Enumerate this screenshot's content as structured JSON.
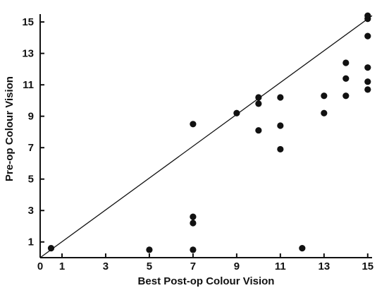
{
  "chart_data": {
    "type": "scatter",
    "xlabel": "Best Post-op Colour Vision",
    "ylabel": "Pre-op Colour Vision",
    "xlim": [
      0,
      15
    ],
    "ylim": [
      0,
      15
    ],
    "xticks": [
      0,
      1,
      3,
      5,
      7,
      9,
      11,
      13,
      15
    ],
    "yticks": [
      1,
      3,
      5,
      7,
      9,
      11,
      13,
      15
    ],
    "grid": false,
    "legend": "none",
    "reference_line": {
      "from": [
        0,
        0
      ],
      "to": [
        15.2,
        15.4
      ],
      "label": ""
    },
    "points": [
      {
        "x": 0.5,
        "y": 0.6
      },
      {
        "x": 5,
        "y": 0.5
      },
      {
        "x": 7,
        "y": 0.5
      },
      {
        "x": 7,
        "y": 2.2
      },
      {
        "x": 7,
        "y": 2.6
      },
      {
        "x": 7,
        "y": 8.5
      },
      {
        "x": 9,
        "y": 9.2
      },
      {
        "x": 10,
        "y": 8.1
      },
      {
        "x": 10,
        "y": 9.8
      },
      {
        "x": 10,
        "y": 10.2
      },
      {
        "x": 11,
        "y": 6.9
      },
      {
        "x": 11,
        "y": 8.4
      },
      {
        "x": 11,
        "y": 10.2
      },
      {
        "x": 12,
        "y": 0.6
      },
      {
        "x": 13,
        "y": 9.2
      },
      {
        "x": 13,
        "y": 10.3
      },
      {
        "x": 14,
        "y": 10.3
      },
      {
        "x": 14,
        "y": 11.4
      },
      {
        "x": 14,
        "y": 12.4
      },
      {
        "x": 15,
        "y": 10.7
      },
      {
        "x": 15,
        "y": 11.2
      },
      {
        "x": 15,
        "y": 12.1
      },
      {
        "x": 15,
        "y": 14.1
      },
      {
        "x": 15,
        "y": 15.2
      },
      {
        "x": 15,
        "y": 15.4
      }
    ]
  },
  "colors": {
    "ink": "#111111",
    "background": "#ffffff"
  }
}
